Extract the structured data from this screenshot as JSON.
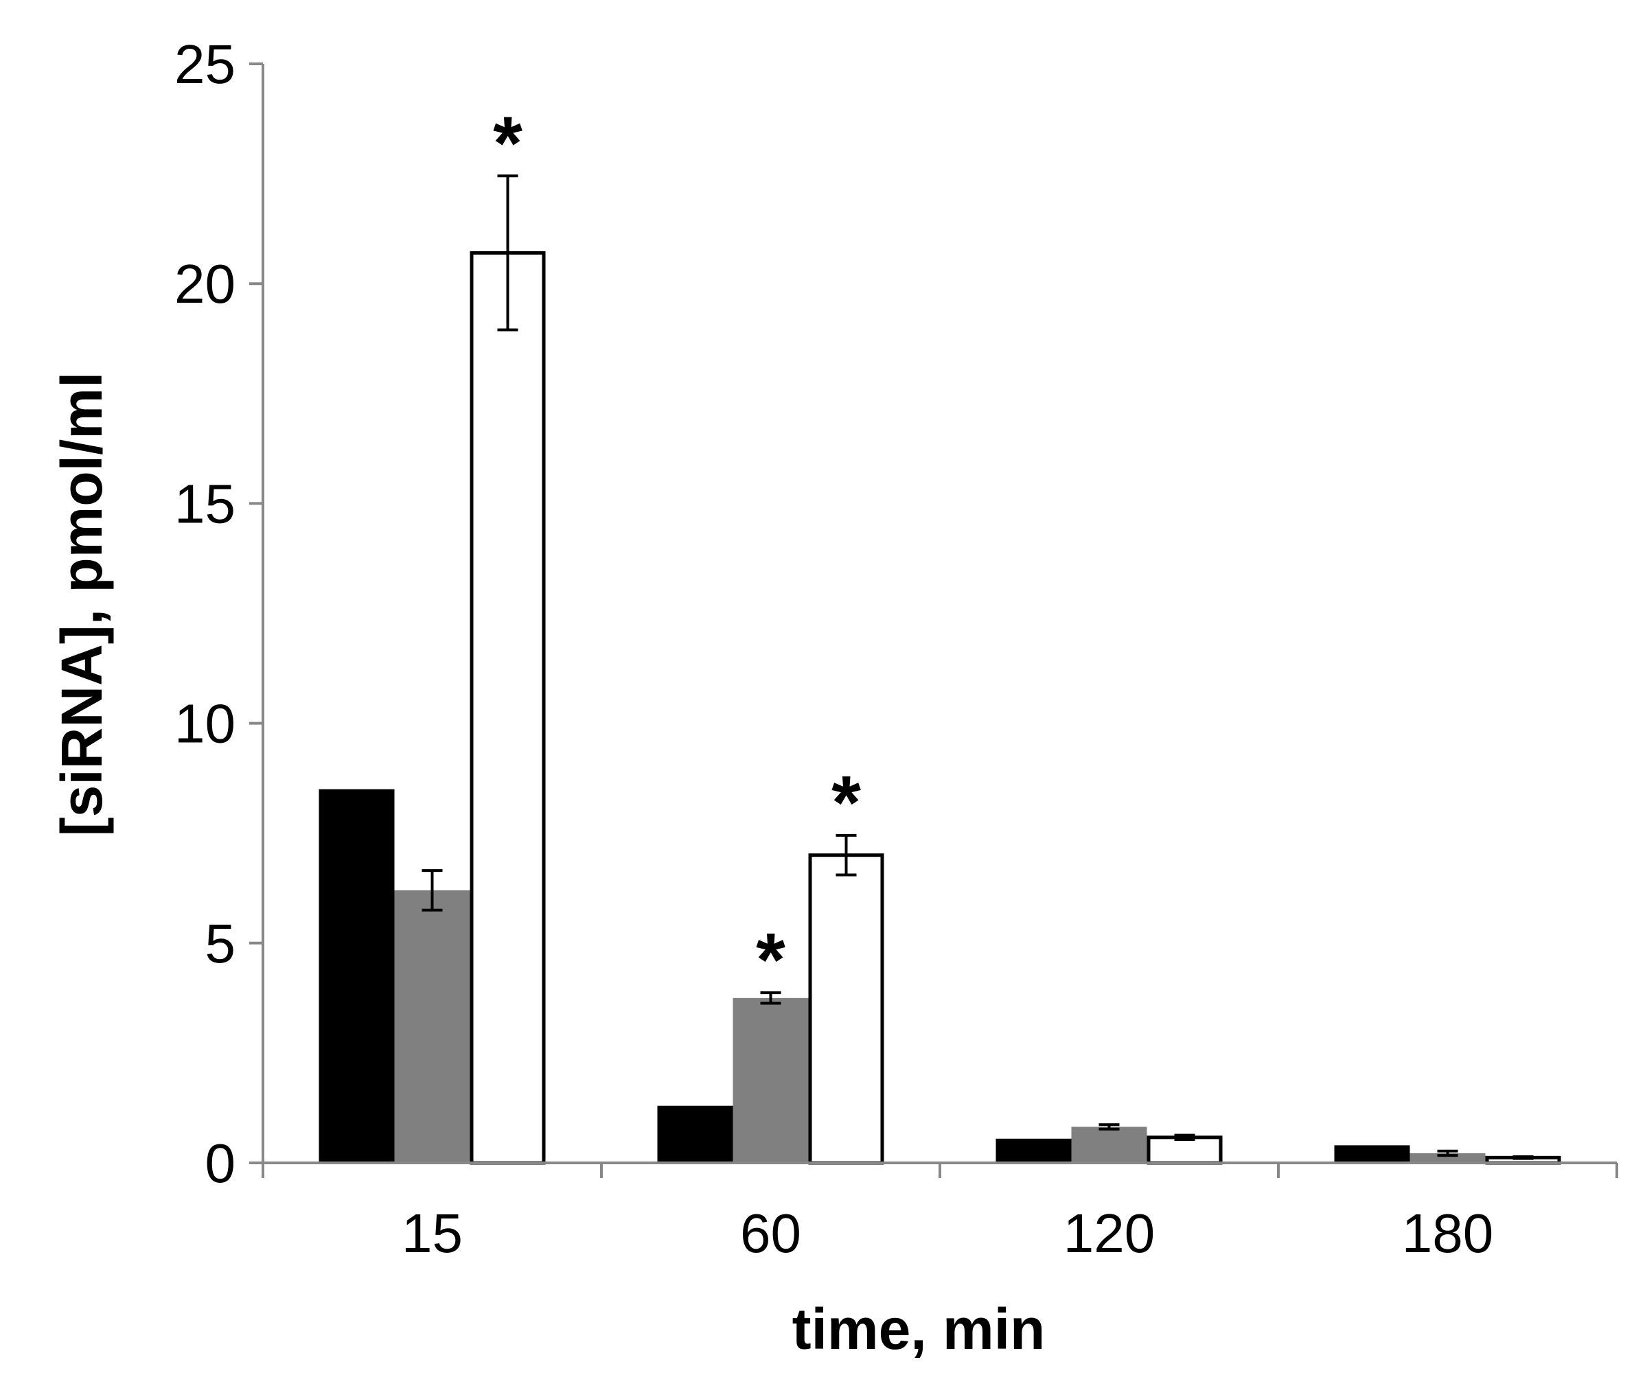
{
  "chart_data": {
    "type": "bar",
    "title": "",
    "xlabel": "time, min",
    "ylabel": "[siRNA], pmol/ml",
    "ylim": [
      0,
      25
    ],
    "yticks": [
      "0",
      "5",
      "10",
      "15",
      "20",
      "25"
    ],
    "categories": [
      "15",
      "60",
      "120",
      "180"
    ],
    "grid": false,
    "legend": "none",
    "series": [
      {
        "color": "#000000",
        "border": "#000000",
        "values": [
          8.5,
          1.3,
          0.55,
          0.4
        ],
        "errors": [
          0,
          0,
          0,
          0
        ],
        "significant": [
          false,
          false,
          false,
          false
        ]
      },
      {
        "color": "#808080",
        "border": "#808080",
        "values": [
          6.2,
          3.75,
          0.82,
          0.22
        ],
        "errors": [
          0.45,
          0.12,
          0.05,
          0.05
        ],
        "significant": [
          false,
          true,
          false,
          false
        ]
      },
      {
        "color": "#ffffff",
        "border": "#000000",
        "values": [
          20.7,
          7.0,
          0.58,
          0.12
        ],
        "errors": [
          1.75,
          0.45,
          0.05,
          0.02
        ],
        "significant": [
          true,
          true,
          false,
          false
        ]
      }
    ],
    "significance_marker": "*"
  }
}
